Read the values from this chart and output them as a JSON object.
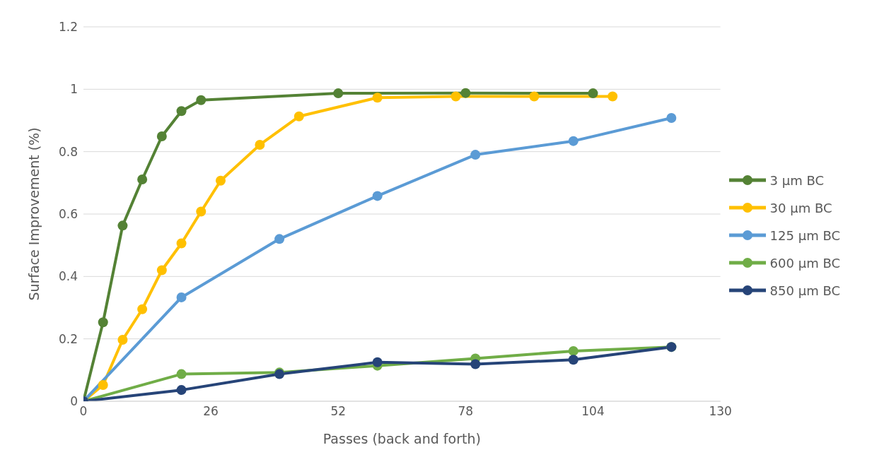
{
  "chart_data": {
    "type": "line",
    "xlabel": "Passes (back and forth)",
    "ylabel": "Surface Improvement (%)",
    "xlim": [
      0,
      130
    ],
    "xticks": [
      0,
      26,
      52,
      78,
      104,
      130
    ],
    "ylim": [
      0,
      1.2
    ],
    "yticks": [
      0,
      0.2,
      0.4,
      0.6,
      0.8,
      1,
      1.2
    ],
    "grid": "y",
    "legend": "right",
    "marker": "circle",
    "line_style": "solid",
    "series": [
      {
        "name": "3 µm BC",
        "color": "#548235",
        "x": [
          0,
          4,
          8,
          12,
          16,
          20,
          24,
          52,
          78,
          104
        ],
        "values": [
          0,
          0.253,
          0.563,
          0.711,
          0.849,
          0.93,
          0.965,
          0.987,
          0.988,
          0.987
        ]
      },
      {
        "name": "30 µm BC",
        "color": "#ffc000",
        "x": [
          0,
          4,
          8,
          12,
          16,
          20,
          24,
          28,
          36,
          44,
          60,
          76,
          92,
          108
        ],
        "values": [
          0,
          0.052,
          0.197,
          0.295,
          0.42,
          0.506,
          0.608,
          0.707,
          0.822,
          0.913,
          0.973,
          0.977,
          0.977,
          0.977
        ]
      },
      {
        "name": "125 µm BC",
        "color": "#5b9bd5",
        "x": [
          0,
          20,
          40,
          60,
          80,
          100,
          120
        ],
        "values": [
          0,
          0.333,
          0.52,
          0.658,
          0.79,
          0.834,
          0.908
        ]
      },
      {
        "name": "600 µm BC",
        "color": "#70ad47",
        "x": [
          0,
          20,
          40,
          60,
          80,
          100,
          120
        ],
        "values": [
          0,
          0.087,
          0.092,
          0.114,
          0.137,
          0.161,
          0.174
        ]
      },
      {
        "name": "850 µm BC",
        "color": "#264478",
        "x": [
          0,
          20,
          40,
          60,
          80,
          100,
          120
        ],
        "values": [
          0,
          0.036,
          0.087,
          0.125,
          0.119,
          0.133,
          0.174
        ]
      }
    ]
  }
}
